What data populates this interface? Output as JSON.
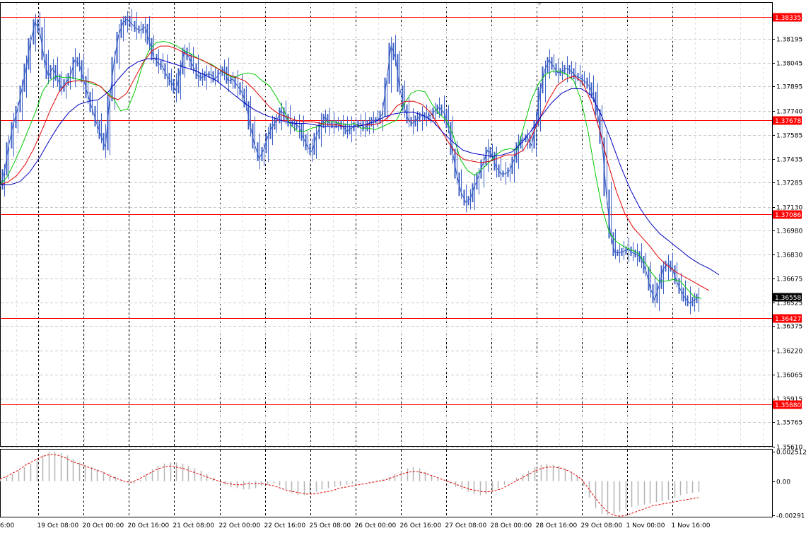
{
  "chart_data": {
    "type": "candlestick",
    "symbol_timeframe": "",
    "price_axis": {
      "range": [
        1.3561,
        1.38415
      ],
      "ticks": [
        "1.38335",
        "1.38195",
        "1.38045",
        "1.37895",
        "1.37740",
        "1.37585",
        "1.37435",
        "1.37285",
        "1.37130",
        "1.36980",
        "1.36830",
        "1.36675",
        "1.36525",
        "1.36375",
        "1.36220",
        "1.36065",
        "1.35915",
        "1.35765",
        "1.35610"
      ],
      "tick_values": [
        1.38335,
        1.38195,
        1.38045,
        1.37895,
        1.3774,
        1.37585,
        1.37435,
        1.37285,
        1.3713,
        1.3698,
        1.3683,
        1.36675,
        1.36525,
        1.36375,
        1.3622,
        1.36065,
        1.35915,
        1.35765,
        1.3561
      ]
    },
    "time_axis": {
      "ticks": [
        "6:00",
        "19 Oct 08:00",
        "20 Oct 00:00",
        "20 Oct 16:00",
        "21 Oct 08:00",
        "22 Oct 00:00",
        "22 Oct 16:00",
        "25 Oct 08:00",
        "26 Oct 00:00",
        "26 Oct 16:00",
        "27 Oct 08:00",
        "28 Oct 00:00",
        "28 Oct 16:00",
        "29 Oct 08:00",
        "1 Nov 00:00",
        "1 Nov 16:00"
      ]
    },
    "levels": [
      {
        "label": "1.38335",
        "value": 1.38335,
        "color": "#ff0000"
      },
      {
        "label": "1.37678",
        "value": 1.37678,
        "color": "#ff0000"
      },
      {
        "label": "1.37086",
        "value": 1.37086,
        "color": "#ff0000"
      },
      {
        "label": "1.36427",
        "value": 1.36427,
        "color": "#ff0000"
      },
      {
        "label": "1.35880",
        "value": 1.3588,
        "color": "#ff0000"
      }
    ],
    "current_price": {
      "label": "1.36558",
      "value": 1.36558,
      "color": "#000000"
    },
    "series": [
      {
        "name": "",
        "kind": "price",
        "color": "#3b5fc4",
        "values": [
          1.3726,
          1.3735,
          1.3752,
          1.3765,
          1.3775,
          1.3788,
          1.3802,
          1.3818,
          1.383,
          1.3825,
          1.3808,
          1.3796,
          1.3801,
          1.3795,
          1.3788,
          1.3792,
          1.3796,
          1.3806,
          1.3804,
          1.3794,
          1.3784,
          1.3775,
          1.3766,
          1.3758,
          1.3751,
          1.3782,
          1.3806,
          1.3822,
          1.383,
          1.3832,
          1.3829,
          1.3826,
          1.3825,
          1.3827,
          1.3818,
          1.3808,
          1.3804,
          1.3802,
          1.3796,
          1.3792,
          1.3787,
          1.3799,
          1.3812,
          1.3808,
          1.3802,
          1.3796,
          1.3795,
          1.3797,
          1.3797,
          1.3794,
          1.3798,
          1.38,
          1.3793,
          1.3794,
          1.379,
          1.3786,
          1.3778,
          1.3764,
          1.3752,
          1.3744,
          1.3749,
          1.3758,
          1.3764,
          1.3768,
          1.3774,
          1.377,
          1.3766,
          1.3766,
          1.3764,
          1.3757,
          1.3751,
          1.3748,
          1.3758,
          1.3765,
          1.377,
          1.3766,
          1.3765,
          1.3766,
          1.3764,
          1.3761,
          1.3763,
          1.3765,
          1.3766,
          1.3763,
          1.3766,
          1.3768,
          1.3768,
          1.3772,
          1.3793,
          1.3815,
          1.3808,
          1.3788,
          1.3776,
          1.3768,
          1.3766,
          1.3769,
          1.3771,
          1.377,
          1.3771,
          1.3774,
          1.3776,
          1.3773,
          1.3765,
          1.3748,
          1.3733,
          1.3722,
          1.3716,
          1.3718,
          1.3726,
          1.3733,
          1.3741,
          1.3749,
          1.3746,
          1.3738,
          1.3734,
          1.3734,
          1.3736,
          1.3743,
          1.3752,
          1.3756,
          1.3757,
          1.3752,
          1.3766,
          1.3787,
          1.38,
          1.3806,
          1.3802,
          1.3798,
          1.3799,
          1.3801,
          1.3799,
          1.3796,
          1.3795,
          1.3793,
          1.379,
          1.3784,
          1.3773,
          1.3755,
          1.3722,
          1.3695,
          1.3684,
          1.3684,
          1.3685,
          1.3686,
          1.3684,
          1.3683,
          1.368,
          1.3673,
          1.3662,
          1.3654,
          1.3663,
          1.3674,
          1.3677,
          1.3674,
          1.3666,
          1.366,
          1.3655,
          1.3652,
          1.3654,
          1.3656
        ]
      },
      {
        "name": "",
        "kind": "ma",
        "color": "#00c800",
        "values": [
          1.3727,
          1.3732,
          1.3741,
          1.3751,
          1.3762,
          1.3773,
          1.3786,
          1.3793,
          1.3796,
          1.3795,
          1.3795,
          1.3794,
          1.3793,
          1.3791,
          1.379,
          1.3786,
          1.3782,
          1.3774,
          1.3775,
          1.3786,
          1.3801,
          1.3812,
          1.3817,
          1.3818,
          1.3817,
          1.3815,
          1.3812,
          1.381,
          1.3807,
          1.3805,
          1.3803,
          1.38,
          1.3797,
          1.3795,
          1.3797,
          1.3798,
          1.3797,
          1.3793,
          1.379,
          1.3783,
          1.3775,
          1.3765,
          1.3761,
          1.3761,
          1.3763,
          1.3764,
          1.3767,
          1.3767,
          1.3766,
          1.3765,
          1.3766,
          1.3763,
          1.3763,
          1.3762,
          1.3764,
          1.3766,
          1.3768,
          1.3778,
          1.3785,
          1.3787,
          1.3786,
          1.3778,
          1.3772,
          1.3768,
          1.3758,
          1.3743,
          1.3736,
          1.3733,
          1.3737,
          1.3741,
          1.3746,
          1.3749,
          1.375,
          1.3749,
          1.3765,
          1.3781,
          1.3791,
          1.3797,
          1.3799,
          1.3799,
          1.3797,
          1.3793,
          1.3781,
          1.3761,
          1.3735,
          1.3712,
          1.3697,
          1.3691,
          1.3688,
          1.3686,
          1.3684,
          1.3678,
          1.3671,
          1.3666,
          1.3666,
          1.3667,
          1.3666,
          1.3661,
          1.3656,
          1.3655
        ]
      },
      {
        "name": "",
        "kind": "ma",
        "color": "#e00000",
        "values": [
          1.3727,
          1.3729,
          1.3733,
          1.374,
          1.375,
          1.3762,
          1.3775,
          1.3786,
          1.3792,
          1.3793,
          1.3793,
          1.3792,
          1.3789,
          1.3783,
          1.3781,
          1.3785,
          1.3795,
          1.3805,
          1.3812,
          1.3815,
          1.3815,
          1.3813,
          1.381,
          1.3808,
          1.3806,
          1.3803,
          1.38,
          1.3797,
          1.3795,
          1.3793,
          1.3788,
          1.3782,
          1.3776,
          1.3772,
          1.377,
          1.3768,
          1.3767,
          1.3767,
          1.3766,
          1.3765,
          1.3765,
          1.3764,
          1.3764,
          1.3765,
          1.3765,
          1.3766,
          1.377,
          1.3777,
          1.378,
          1.378,
          1.3778,
          1.3773,
          1.3764,
          1.3755,
          1.3747,
          1.3743,
          1.3742,
          1.3741,
          1.3742,
          1.3744,
          1.3746,
          1.3746,
          1.3749,
          1.3758,
          1.377,
          1.3781,
          1.379,
          1.3794,
          1.3796,
          1.3792,
          1.378,
          1.3762,
          1.3741,
          1.3723,
          1.3709,
          1.37,
          1.3694,
          1.3688,
          1.3681,
          1.3676,
          1.3672,
          1.3669,
          1.3666,
          1.3663,
          1.366
        ]
      },
      {
        "name": "",
        "kind": "ma",
        "color": "#0000c0",
        "values": [
          1.3727,
          1.3727,
          1.3729,
          1.3735,
          1.3744,
          1.3755,
          1.3765,
          1.3773,
          1.3778,
          1.378,
          1.3781,
          1.3786,
          1.3794,
          1.3801,
          1.3805,
          1.3807,
          1.3807,
          1.3805,
          1.3803,
          1.3801,
          1.3799,
          1.3796,
          1.3793,
          1.3788,
          1.3783,
          1.3778,
          1.3774,
          1.3771,
          1.3769,
          1.3767,
          1.3766,
          1.3766,
          1.3765,
          1.3764,
          1.3764,
          1.3764,
          1.3764,
          1.3765,
          1.3767,
          1.377,
          1.3772,
          1.3773,
          1.3773,
          1.3771,
          1.3767,
          1.376,
          1.3754,
          1.3749,
          1.3747,
          1.3746,
          1.3745,
          1.3746,
          1.3748,
          1.3754,
          1.3762,
          1.3771,
          1.3779,
          1.3785,
          1.3788,
          1.3788,
          1.3784,
          1.3772,
          1.3756,
          1.3739,
          1.3724,
          1.3712,
          1.3703,
          1.3696,
          1.3691,
          1.3686,
          1.3681,
          1.3677,
          1.3674,
          1.367
        ]
      }
    ],
    "oscillator": {
      "type": "histogram+signal",
      "ticks": [
        "0.002512",
        "0.00",
        "-0.00291"
      ],
      "tick_values": [
        0.002512,
        0.0,
        -0.00291
      ],
      "range": [
        -0.0031,
        0.0027
      ],
      "histogram": [
        0.0002,
        0.0004,
        0.0006,
        0.0009,
        0.0012,
        0.0015,
        0.0019,
        0.0022,
        0.0025,
        0.0025,
        0.0024,
        0.0022,
        0.0019,
        0.0016,
        0.0014,
        0.0012,
        0.001,
        0.0008,
        0.0006,
        0.0004,
        0.0001,
        -0.0001,
        -0.0002,
        0.0001,
        0.0006,
        0.001,
        0.0013,
        0.0015,
        0.0016,
        0.0016,
        0.0015,
        0.0013,
        0.0011,
        0.0009,
        0.0006,
        0.0003,
        0.0,
        -0.0003,
        -0.0005,
        -0.0006,
        -0.0007,
        -0.0007,
        -0.0006,
        -0.0004,
        -0.0003,
        -0.0002,
        -0.0004,
        -0.0007,
        -0.001,
        -0.0012,
        -0.0012,
        -0.0011,
        -0.0009,
        -0.0007,
        -0.0006,
        -0.0005,
        -0.0004,
        -0.0003,
        -0.0002,
        -0.0001,
        0.0,
        0.0,
        0.0001,
        0.0002,
        0.0004,
        0.0006,
        0.0009,
        0.0011,
        0.0012,
        0.0011,
        0.0008,
        0.0005,
        0.0002,
        0.0,
        -0.0002,
        -0.0005,
        -0.0007,
        -0.0009,
        -0.0011,
        -0.0012,
        -0.0011,
        -0.0009,
        -0.0006,
        -0.0003,
        0.0,
        0.0003,
        0.0006,
        0.0009,
        0.0012,
        0.0014,
        0.0015,
        0.0014,
        0.0013,
        0.0011,
        0.0008,
        0.0004,
        -0.0004,
        -0.0014,
        -0.0023,
        -0.0028,
        -0.0029,
        -0.0028,
        -0.0026,
        -0.0024,
        -0.0022,
        -0.0021,
        -0.002,
        -0.0019,
        -0.0018,
        -0.0017,
        -0.0016,
        -0.0014,
        -0.0012,
        -0.0011,
        -0.001,
        -0.0009
      ],
      "signal": [
        0.0002,
        0.0004,
        0.0007,
        0.001,
        0.0014,
        0.0017,
        0.002,
        0.0022,
        0.0023,
        0.0022,
        0.002,
        0.0017,
        0.0015,
        0.0013,
        0.0011,
        0.0009,
        0.0007,
        0.0004,
        0.0002,
        0.0,
        -0.0001,
        0.0001,
        0.0004,
        0.0007,
        0.001,
        0.0012,
        0.0013,
        0.0012,
        0.0011,
        0.0009,
        0.0007,
        0.0005,
        0.0003,
        0.0001,
        -0.0001,
        -0.0002,
        -0.0003,
        -0.0003,
        -0.0002,
        -0.0002,
        -0.0002,
        -0.0003,
        -0.0004,
        -0.0006,
        -0.0008,
        -0.0009,
        -0.001,
        -0.0011,
        -0.0011,
        -0.001,
        -0.0009,
        -0.0008,
        -0.0006,
        -0.0005,
        -0.0004,
        -0.0003,
        -0.0002,
        -0.0001,
        0.0,
        0.0001,
        0.0003,
        0.0005,
        0.0007,
        0.0008,
        0.0008,
        0.0007,
        0.0005,
        0.0003,
        0.0001,
        -0.0001,
        -0.0003,
        -0.0005,
        -0.0007,
        -0.0008,
        -0.0009,
        -0.0009,
        -0.0008,
        -0.0006,
        -0.0003,
        0.0,
        0.0003,
        0.0006,
        0.0009,
        0.0011,
        0.0012,
        0.0012,
        0.0011,
        0.0009,
        0.0006,
        0.0002,
        -0.0005,
        -0.0013,
        -0.002,
        -0.0026,
        -0.0029,
        -0.003,
        -0.0029,
        -0.0027,
        -0.0025,
        -0.0023,
        -0.0021,
        -0.002,
        -0.0019,
        -0.0018,
        -0.0017,
        -0.0016,
        -0.0015,
        -0.0014
      ],
      "histogram_color": "#b4b4b4",
      "signal_color": "#e00000"
    },
    "grid": true,
    "colors": {
      "background": "#ffffff",
      "grid": "#c8c8c8",
      "time_grid": "#000000"
    }
  }
}
